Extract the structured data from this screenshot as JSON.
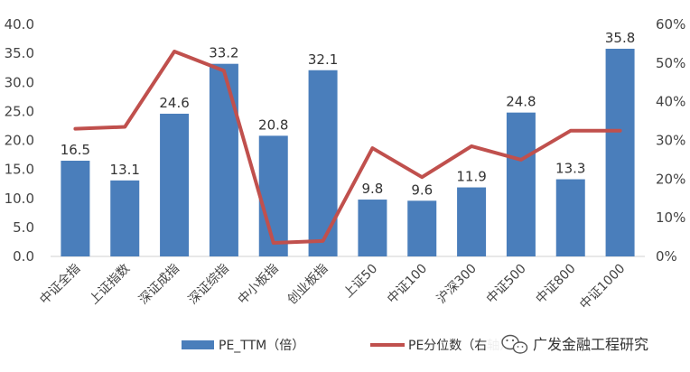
{
  "chart_data": {
    "type": "bar",
    "categories": [
      "中证全指",
      "上证指数",
      "深证成指",
      "深证综指",
      "中小板指",
      "创业板指",
      "上证50",
      "中证100",
      "沪深300",
      "中证500",
      "中证800",
      "中证1000"
    ],
    "series": [
      {
        "name": "PE_TTM（倍）",
        "type": "bar",
        "axis": "left",
        "color": "#4a7ebb",
        "values": [
          16.5,
          13.1,
          24.6,
          33.2,
          20.8,
          32.1,
          9.8,
          9.6,
          11.9,
          24.8,
          13.3,
          35.8
        ]
      },
      {
        "name": "PE分位数（右轴）",
        "type": "line",
        "axis": "right",
        "color": "#c0504d",
        "values": [
          33,
          33.5,
          53,
          48,
          3.5,
          4,
          28,
          20.5,
          28.5,
          25,
          32.5,
          32.5
        ]
      }
    ],
    "ylim": [
      0,
      40
    ],
    "yticks": [
      "0.0",
      "5.0",
      "10.0",
      "15.0",
      "20.0",
      "25.0",
      "30.0",
      "35.0",
      "40.0"
    ],
    "y2lim": [
      0,
      60
    ],
    "y2ticks": [
      "0%",
      "10%",
      "20%",
      "30%",
      "40%",
      "50%",
      "60%"
    ],
    "data_labels": [
      "16.5",
      "13.1",
      "24.6",
      "33.2",
      "20.8",
      "32.1",
      "9.8",
      "9.6",
      "11.9",
      "24.8",
      "13.3",
      "35.8"
    ],
    "grid": false,
    "legend_position": "bottom"
  },
  "legend": {
    "bar_label": "PE_TTM（倍）",
    "line_label": "PE分位数（右轴）"
  },
  "watermark": {
    "text": "广发金融工程研究",
    "icon": "wechat-icon"
  }
}
